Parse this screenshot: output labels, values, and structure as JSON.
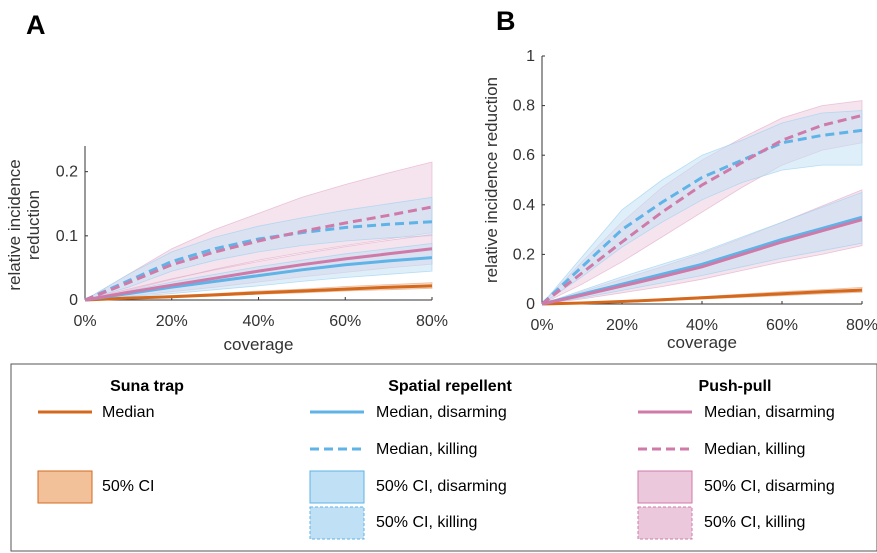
{
  "chart_data": [
    {
      "panel": "A",
      "type": "line",
      "xlabel": "coverage",
      "ylabel_lines": [
        "relative incidence",
        "reduction"
      ],
      "xlim": [
        0,
        80
      ],
      "ylim": [
        0,
        0.24
      ],
      "x_ticks": [
        0,
        20,
        40,
        60,
        80
      ],
      "x_tick_labels": [
        "0%",
        "20%",
        "40%",
        "60%",
        "80%"
      ],
      "y_ticks": [
        0,
        0.1,
        0.2
      ],
      "y_tick_labels": [
        "0",
        "0.1",
        "0.2"
      ],
      "x": [
        0,
        10,
        20,
        30,
        40,
        50,
        60,
        70,
        80
      ],
      "series": [
        {
          "key": "suna_median",
          "style": "solid",
          "color": "#d4691e",
          "values": [
            0,
            0.003,
            0.005,
            0.008,
            0.011,
            0.014,
            0.017,
            0.02,
            0.022
          ],
          "lower": [
            0,
            0.002,
            0.004,
            0.006,
            0.009,
            0.011,
            0.014,
            0.016,
            0.018
          ],
          "upper": [
            0,
            0.004,
            0.007,
            0.01,
            0.014,
            0.017,
            0.021,
            0.024,
            0.027
          ]
        },
        {
          "key": "sr_disarm",
          "style": "solid",
          "color": "#5fb3e6",
          "values": [
            0,
            0.01,
            0.02,
            0.029,
            0.038,
            0.047,
            0.055,
            0.061,
            0.066
          ],
          "lower": [
            0,
            0.005,
            0.01,
            0.016,
            0.022,
            0.029,
            0.035,
            0.04,
            0.045
          ],
          "upper": [
            0,
            0.014,
            0.028,
            0.04,
            0.052,
            0.062,
            0.072,
            0.08,
            0.088
          ]
        },
        {
          "key": "sr_kill",
          "style": "dashed",
          "color": "#5fb3e6",
          "values": [
            0,
            0.03,
            0.06,
            0.08,
            0.095,
            0.105,
            0.113,
            0.118,
            0.122
          ],
          "lower": [
            0,
            0.02,
            0.045,
            0.062,
            0.075,
            0.085,
            0.092,
            0.097,
            0.1
          ],
          "upper": [
            0,
            0.04,
            0.075,
            0.098,
            0.115,
            0.128,
            0.14,
            0.15,
            0.16
          ]
        },
        {
          "key": "pp_disarm",
          "style": "solid",
          "color": "#cf7aa8",
          "values": [
            0,
            0.012,
            0.023,
            0.034,
            0.045,
            0.055,
            0.064,
            0.072,
            0.08
          ],
          "lower": [
            0,
            0.006,
            0.013,
            0.02,
            0.028,
            0.036,
            0.043,
            0.05,
            0.056
          ],
          "upper": [
            0,
            0.017,
            0.033,
            0.047,
            0.06,
            0.072,
            0.083,
            0.093,
            0.102
          ]
        },
        {
          "key": "pp_kill",
          "style": "dashed",
          "color": "#cf7aa8",
          "values": [
            0,
            0.027,
            0.055,
            0.075,
            0.092,
            0.107,
            0.12,
            0.132,
            0.145
          ],
          "lower": [
            0,
            0.015,
            0.032,
            0.048,
            0.062,
            0.074,
            0.085,
            0.095,
            0.105
          ],
          "upper": [
            0,
            0.04,
            0.08,
            0.11,
            0.135,
            0.16,
            0.18,
            0.198,
            0.215
          ]
        }
      ]
    },
    {
      "panel": "B",
      "type": "line",
      "xlabel": "coverage",
      "ylabel_lines": [
        "relative incidence reduction"
      ],
      "xlim": [
        0,
        80
      ],
      "ylim": [
        0,
        1
      ],
      "x_ticks": [
        0,
        20,
        40,
        60,
        80
      ],
      "x_tick_labels": [
        "0%",
        "20%",
        "40%",
        "60%",
        "80%"
      ],
      "y_ticks": [
        0,
        0.2,
        0.4,
        0.6,
        0.8,
        1
      ],
      "y_tick_labels": [
        "0",
        "0.2",
        "0.4",
        "0.6",
        "0.8",
        "1"
      ],
      "x": [
        0,
        10,
        20,
        30,
        40,
        50,
        60,
        70,
        80
      ],
      "series": [
        {
          "key": "suna_median",
          "style": "solid",
          "color": "#d4691e",
          "values": [
            0,
            0.004,
            0.01,
            0.017,
            0.025,
            0.033,
            0.041,
            0.049,
            0.056
          ],
          "lower": [
            0,
            0.003,
            0.008,
            0.013,
            0.02,
            0.027,
            0.034,
            0.041,
            0.047
          ],
          "upper": [
            0,
            0.006,
            0.013,
            0.021,
            0.03,
            0.04,
            0.05,
            0.058,
            0.067
          ]
        },
        {
          "key": "sr_disarm",
          "style": "solid",
          "color": "#5fb3e6",
          "values": [
            0,
            0.04,
            0.08,
            0.12,
            0.16,
            0.21,
            0.26,
            0.305,
            0.35
          ],
          "lower": [
            0,
            0.025,
            0.055,
            0.085,
            0.115,
            0.15,
            0.185,
            0.215,
            0.245
          ],
          "upper": [
            0,
            0.055,
            0.11,
            0.16,
            0.21,
            0.27,
            0.33,
            0.39,
            0.45
          ]
        },
        {
          "key": "sr_kill",
          "style": "dashed",
          "color": "#5fb3e6",
          "values": [
            0,
            0.15,
            0.3,
            0.41,
            0.51,
            0.58,
            0.65,
            0.68,
            0.7
          ],
          "lower": [
            0,
            0.11,
            0.23,
            0.33,
            0.42,
            0.49,
            0.54,
            0.56,
            0.56
          ],
          "upper": [
            0,
            0.19,
            0.38,
            0.5,
            0.6,
            0.66,
            0.73,
            0.77,
            0.78
          ]
        },
        {
          "key": "pp_disarm",
          "style": "solid",
          "color": "#cf7aa8",
          "values": [
            0,
            0.035,
            0.072,
            0.11,
            0.15,
            0.2,
            0.25,
            0.295,
            0.34
          ],
          "lower": [
            0,
            0.02,
            0.045,
            0.07,
            0.1,
            0.135,
            0.17,
            0.2,
            0.235
          ],
          "upper": [
            0,
            0.05,
            0.1,
            0.15,
            0.205,
            0.265,
            0.33,
            0.395,
            0.46
          ]
        },
        {
          "key": "pp_kill",
          "style": "dashed",
          "color": "#cf7aa8",
          "values": [
            0,
            0.125,
            0.25,
            0.37,
            0.48,
            0.57,
            0.66,
            0.72,
            0.76
          ],
          "lower": [
            0,
            0.08,
            0.17,
            0.27,
            0.37,
            0.47,
            0.56,
            0.62,
            0.65
          ],
          "upper": [
            0,
            0.17,
            0.33,
            0.47,
            0.58,
            0.67,
            0.75,
            0.8,
            0.82
          ]
        }
      ]
    }
  ],
  "legend": {
    "groups": [
      {
        "key": "suna",
        "title": "Suna trap",
        "color": "#d4691e",
        "fill": "#f2c19a",
        "entries": [
          {
            "kind": "line",
            "style": "solid",
            "label": "Median"
          },
          {
            "kind": "box",
            "style": "solid",
            "label": "50% CI"
          }
        ]
      },
      {
        "key": "sr",
        "title": "Spatial repellent",
        "color": "#5fb3e6",
        "fill": "#bfe0f5",
        "entries": [
          {
            "kind": "line",
            "style": "solid",
            "label": "Median, disarming"
          },
          {
            "kind": "line",
            "style": "dashed",
            "label": "Median, killing"
          },
          {
            "kind": "box",
            "style": "solid",
            "label": "50% CI, disarming"
          },
          {
            "kind": "box",
            "style": "dashed",
            "label": "50% CI, killing"
          }
        ]
      },
      {
        "key": "pp",
        "title": "Push-pull",
        "color": "#cf7aa8",
        "fill": "#ecc8dd",
        "entries": [
          {
            "kind": "line",
            "style": "solid",
            "label": "Median, disarming"
          },
          {
            "kind": "line",
            "style": "dashed",
            "label": "Median, killing"
          },
          {
            "kind": "box",
            "style": "solid",
            "label": "50% CI, disarming"
          },
          {
            "kind": "box",
            "style": "dashed",
            "label": "50% CI, killing"
          }
        ]
      }
    ]
  }
}
